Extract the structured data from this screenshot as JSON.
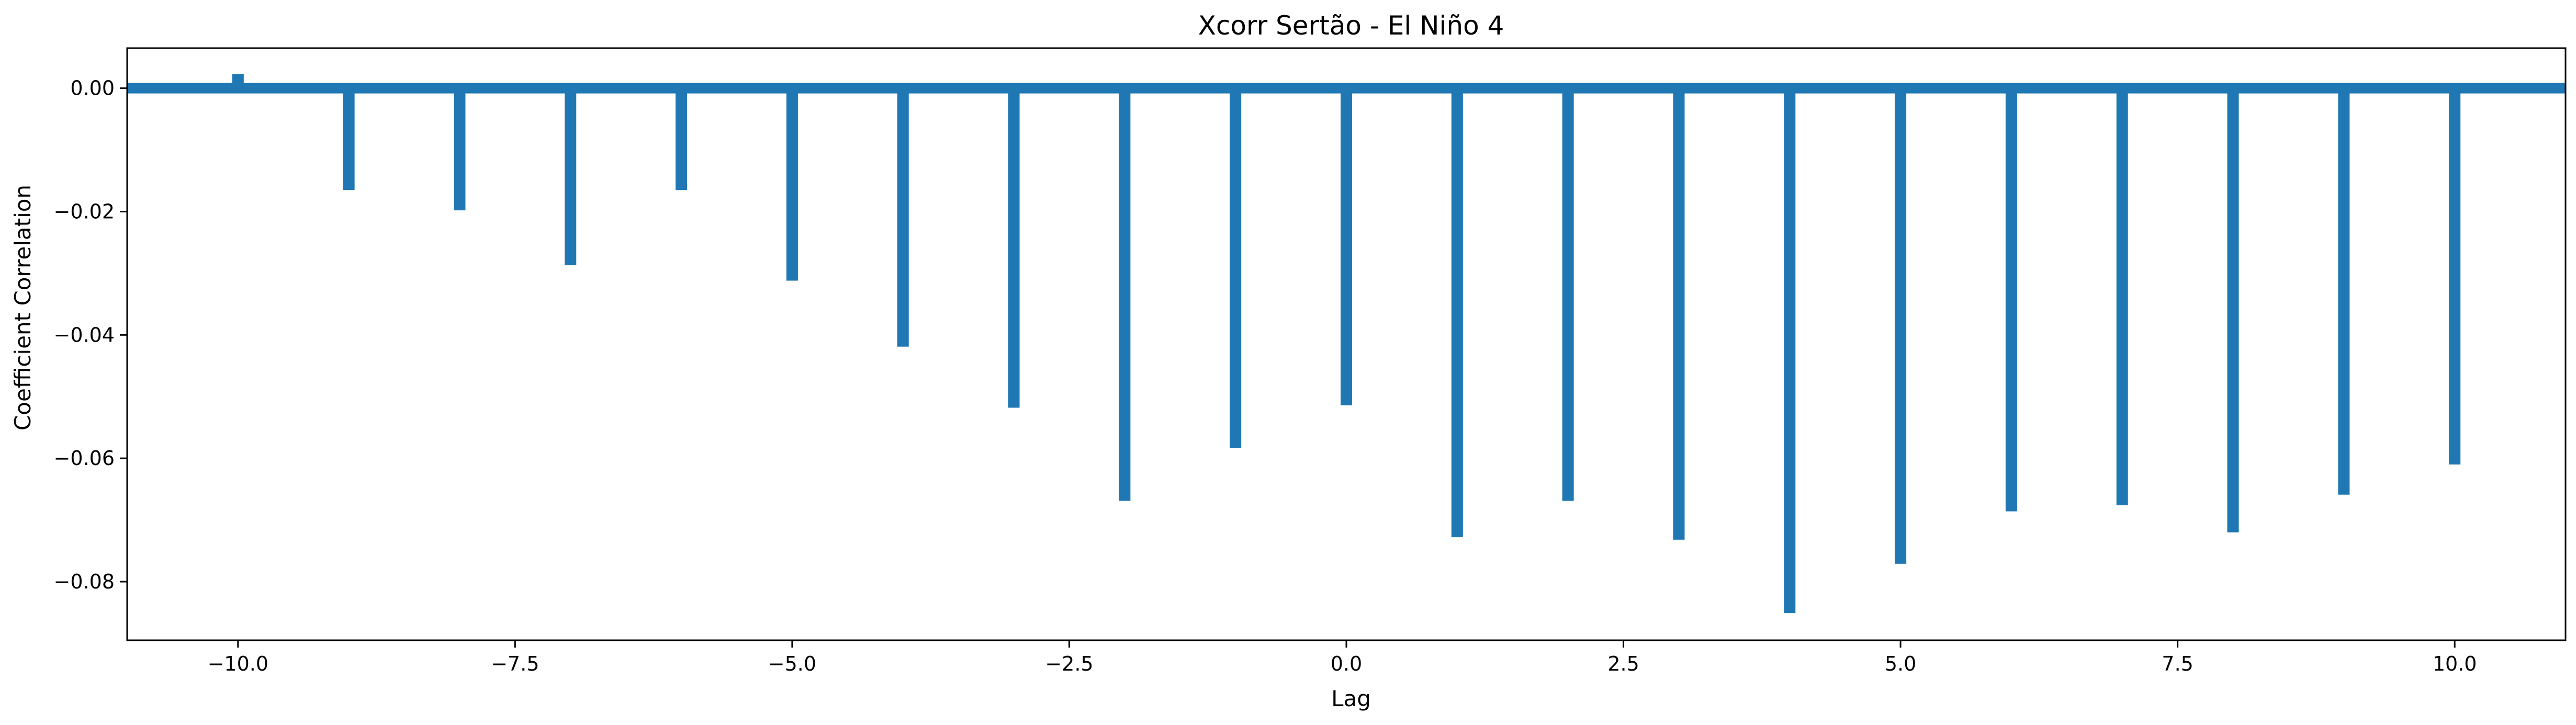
{
  "chart_data": {
    "type": "bar",
    "title": "Xcorr Sertão - El Niño 4",
    "xlabel": "Lag",
    "ylabel": "Coefficient Correlation",
    "xlim": [
      -11,
      11
    ],
    "ylim": [
      -0.0895,
      0.0065
    ],
    "x": [
      -10,
      -9,
      -8,
      -7,
      -6,
      -5,
      -4,
      -3,
      -2,
      -1,
      0,
      1,
      2,
      3,
      4,
      5,
      6,
      7,
      8,
      9,
      10
    ],
    "values": [
      0.0023,
      -0.0165,
      -0.0198,
      -0.0287,
      -0.0165,
      -0.0312,
      -0.0419,
      -0.0518,
      -0.0669,
      -0.0583,
      -0.0514,
      -0.0728,
      -0.0669,
      -0.0732,
      -0.0851,
      -0.0771,
      -0.0686,
      -0.0676,
      -0.072,
      -0.0659,
      -0.061
    ],
    "baseline": 0,
    "x_ticks": [
      -10.0,
      -7.5,
      -5.0,
      -2.5,
      0.0,
      2.5,
      5.0,
      7.5,
      10.0
    ],
    "x_tick_labels": [
      "−10.0",
      "−7.5",
      "−5.0",
      "−2.5",
      "0.0",
      "2.5",
      "5.0",
      "7.5",
      "10.0"
    ],
    "y_ticks": [
      0.0,
      -0.02,
      -0.04,
      -0.06,
      -0.08
    ],
    "y_tick_labels": [
      "0.00",
      "−0.02",
      "−0.04",
      "−0.06",
      "−0.08"
    ],
    "grid": false,
    "legend": "none",
    "colors": {
      "bar": "#1f77b4",
      "axis": "#000000"
    }
  }
}
